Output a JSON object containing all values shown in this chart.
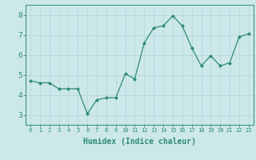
{
  "x": [
    0,
    1,
    2,
    3,
    4,
    5,
    6,
    7,
    8,
    9,
    10,
    11,
    12,
    13,
    14,
    15,
    16,
    17,
    18,
    19,
    20,
    21,
    22,
    23
  ],
  "y": [
    4.7,
    4.6,
    4.6,
    4.3,
    4.3,
    4.3,
    3.05,
    3.75,
    3.85,
    3.85,
    5.05,
    4.8,
    6.6,
    7.35,
    7.45,
    7.95,
    7.45,
    6.35,
    5.45,
    5.95,
    5.45,
    5.6,
    6.9,
    7.05
  ],
  "xlabel": "Humidex (Indice chaleur)",
  "ylim": [
    2.5,
    8.5
  ],
  "xlim": [
    -0.5,
    23.5
  ],
  "yticks": [
    3,
    4,
    5,
    6,
    7,
    8
  ],
  "xticks": [
    0,
    1,
    2,
    3,
    4,
    5,
    6,
    7,
    8,
    9,
    10,
    11,
    12,
    13,
    14,
    15,
    16,
    17,
    18,
    19,
    20,
    21,
    22,
    23
  ],
  "line_color": "#2e8b74",
  "marker": "D",
  "marker_size": 2.0,
  "bg_color": "#cce8eb",
  "grid_color": "#b8d8db",
  "axis_color": "#2e8b74",
  "tick_color": "#2e8b74",
  "label_color": "#2e8b74",
  "font_size_ticks_x": 5.0,
  "font_size_ticks_y": 6.5,
  "font_size_xlabel": 7.0
}
